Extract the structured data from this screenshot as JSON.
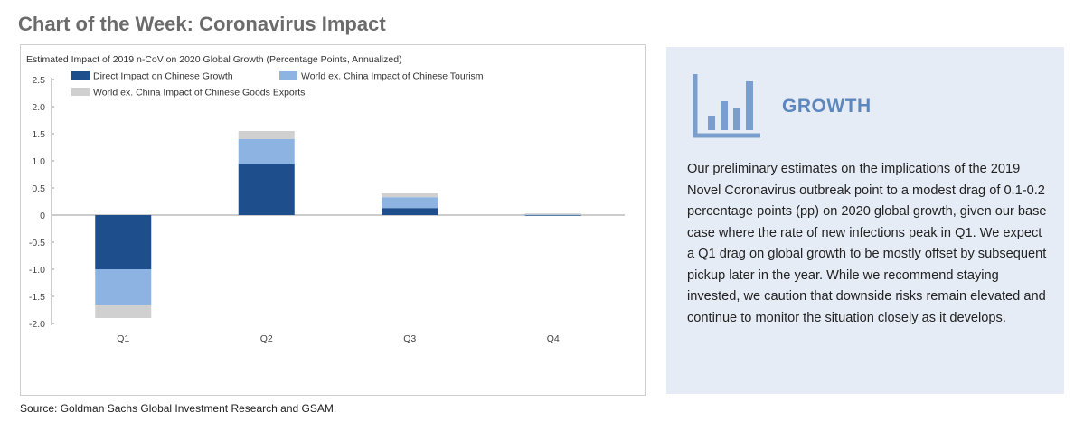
{
  "page_title": "Chart of the Week: Coronavirus Impact",
  "source": "Source: Goldman Sachs Global Investment Research and GSAM.",
  "panel": {
    "heading": "GROWTH",
    "icon": "bar-chart-icon",
    "body": "Our preliminary estimates on the implications of the 2019 Novel Coronavirus outbreak point to a modest drag of 0.1-0.2 percentage points (pp) on 2020 global growth, given our base case where the rate of new infections peak in Q1. We expect a Q1 drag on global growth to be mostly offset by subsequent pickup later in the year. While we recommend staying invested, we caution that downside risks remain elevated and continue to monitor the situation closely as it develops.",
    "background": "#e6ecf5",
    "accent": "#5b87bd"
  },
  "chart_data": {
    "type": "bar",
    "stacked": true,
    "title": "Estimated Impact of 2019 n-CoV on 2020 Global Growth (Percentage Points, Annualized)",
    "categories": [
      "Q1",
      "Q2",
      "Q3",
      "Q4"
    ],
    "series": [
      {
        "name": "Direct Impact on Chinese Growth",
        "color": "#1f4e8c",
        "values": [
          -1.0,
          0.95,
          0.13,
          0.01
        ]
      },
      {
        "name": "World ex. China Impact of Chinese Tourism",
        "color": "#8db3e2",
        "values": [
          -0.65,
          0.45,
          0.2,
          0.01
        ]
      },
      {
        "name": "World ex. China Impact of Chinese Goods Exports",
        "color": "#d0d0d0",
        "values": [
          -0.25,
          0.15,
          0.07,
          0.01
        ]
      }
    ],
    "yticks": [
      "2.5",
      "2.0",
      "1.5",
      "1.0",
      "0.5",
      "0",
      "-0.5",
      "-1.0",
      "-1.5",
      "-2.0"
    ],
    "ylim": [
      -2.0,
      2.5
    ],
    "grid": false,
    "legend_position": "top-left"
  }
}
